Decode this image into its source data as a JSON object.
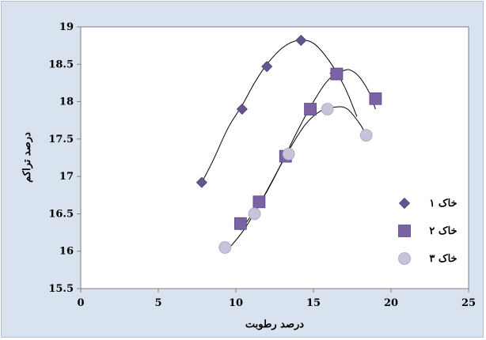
{
  "chart_data": {
    "type": "scatter",
    "title": "",
    "xlabel": "درصد رطوبت",
    "ylabel": "درصد تراکم",
    "xlim": [
      0,
      25
    ],
    "ylim": [
      15.5,
      19
    ],
    "xticks": [
      0,
      5,
      10,
      15,
      20,
      25
    ],
    "yticks": [
      15.5,
      16,
      16.5,
      17,
      17.5,
      18,
      18.5,
      19
    ],
    "grid": false,
    "legend_position": "right",
    "series": [
      {
        "name": "خاک ۱",
        "marker": "diamond",
        "color": "#66558f",
        "points": [
          [
            7.8,
            16.92
          ],
          [
            10.4,
            17.9
          ],
          [
            12.0,
            18.47
          ],
          [
            14.2,
            18.82
          ],
          [
            16.4,
            18.38
          ]
        ],
        "trend": [
          [
            7.8,
            16.92
          ],
          [
            8.5,
            17.2
          ],
          [
            9.5,
            17.65
          ],
          [
            10.4,
            17.95
          ],
          [
            11.2,
            18.25
          ],
          [
            12.0,
            18.5
          ],
          [
            13.0,
            18.72
          ],
          [
            14.0,
            18.82
          ],
          [
            15.0,
            18.78
          ],
          [
            16.0,
            18.55
          ],
          [
            17.0,
            18.2
          ],
          [
            17.8,
            17.8
          ]
        ]
      },
      {
        "name": "خاک ۲",
        "marker": "square",
        "color": "#7a62a5",
        "points": [
          [
            10.3,
            16.37
          ],
          [
            11.5,
            16.66
          ],
          [
            13.2,
            17.27
          ],
          [
            14.8,
            17.9
          ],
          [
            16.5,
            18.37
          ],
          [
            19.0,
            18.04
          ]
        ],
        "trend": [
          [
            10.3,
            16.28
          ],
          [
            11.0,
            16.48
          ],
          [
            12.0,
            16.8
          ],
          [
            13.0,
            17.2
          ],
          [
            14.0,
            17.62
          ],
          [
            15.0,
            18.0
          ],
          [
            16.0,
            18.3
          ],
          [
            17.0,
            18.42
          ],
          [
            17.5,
            18.41
          ],
          [
            18.0,
            18.32
          ],
          [
            18.6,
            18.12
          ],
          [
            19.0,
            17.9
          ]
        ]
      },
      {
        "name": "خاک ۳",
        "marker": "circle",
        "color": "#c8c2da",
        "points": [
          [
            9.3,
            16.05
          ],
          [
            11.2,
            16.5
          ],
          [
            13.4,
            17.3
          ],
          [
            15.9,
            17.9
          ],
          [
            18.4,
            17.55
          ]
        ],
        "trend": [
          [
            9.6,
            16.05
          ],
          [
            10.5,
            16.28
          ],
          [
            11.5,
            16.62
          ],
          [
            12.5,
            17.0
          ],
          [
            13.5,
            17.38
          ],
          [
            14.5,
            17.7
          ],
          [
            15.5,
            17.88
          ],
          [
            16.5,
            17.93
          ],
          [
            17.2,
            17.9
          ],
          [
            18.0,
            17.7
          ],
          [
            18.4,
            17.55
          ]
        ]
      }
    ]
  }
}
